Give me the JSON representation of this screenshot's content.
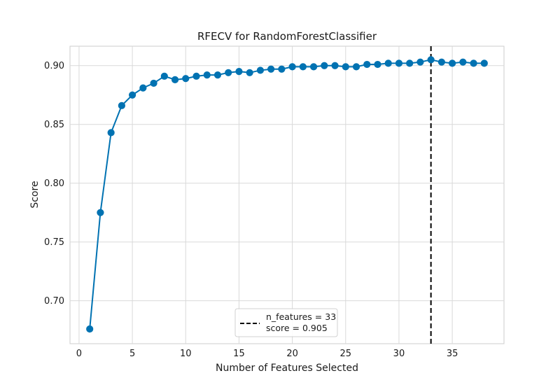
{
  "chart_data": {
    "type": "line",
    "title": "RFECV for RandomForestClassifier",
    "xlabel": "Number of Features Selected",
    "ylabel": "Score",
    "xlim": [
      -0.85,
      39.85
    ],
    "ylim": [
      0.6635,
      0.9165
    ],
    "xticks": [
      0,
      5,
      10,
      15,
      20,
      25,
      30,
      35
    ],
    "xtick_labels": [
      "0",
      "5",
      "10",
      "15",
      "20",
      "25",
      "30",
      "35"
    ],
    "yticks": [
      0.7,
      0.75,
      0.8,
      0.85,
      0.9
    ],
    "ytick_labels": [
      "0.70",
      "0.75",
      "0.80",
      "0.85",
      "0.90"
    ],
    "grid": true,
    "legend_position": "bottom-center",
    "series": [
      {
        "x": [
          1,
          2,
          3,
          4,
          5,
          6,
          7,
          8,
          9,
          10,
          11,
          12,
          13,
          14,
          15,
          16,
          17,
          18,
          19,
          20,
          21,
          22,
          23,
          24,
          25,
          26,
          27,
          28,
          29,
          30,
          31,
          32,
          33,
          34,
          35,
          36,
          37,
          38
        ],
        "y": [
          0.676,
          0.775,
          0.843,
          0.866,
          0.875,
          0.881,
          0.885,
          0.891,
          0.888,
          0.889,
          0.891,
          0.892,
          0.892,
          0.894,
          0.895,
          0.894,
          0.896,
          0.897,
          0.897,
          0.899,
          0.899,
          0.899,
          0.9,
          0.9,
          0.899,
          0.899,
          0.901,
          0.901,
          0.902,
          0.902,
          0.902,
          0.903,
          0.905,
          0.903,
          0.902,
          0.903,
          0.902,
          0.902
        ],
        "color": "#0072b2"
      }
    ],
    "reference_line": {
      "x": 33,
      "style": "dashed",
      "color": "#000000",
      "label_line1": "n_features = 33",
      "label_line2": "score = 0.905"
    }
  }
}
